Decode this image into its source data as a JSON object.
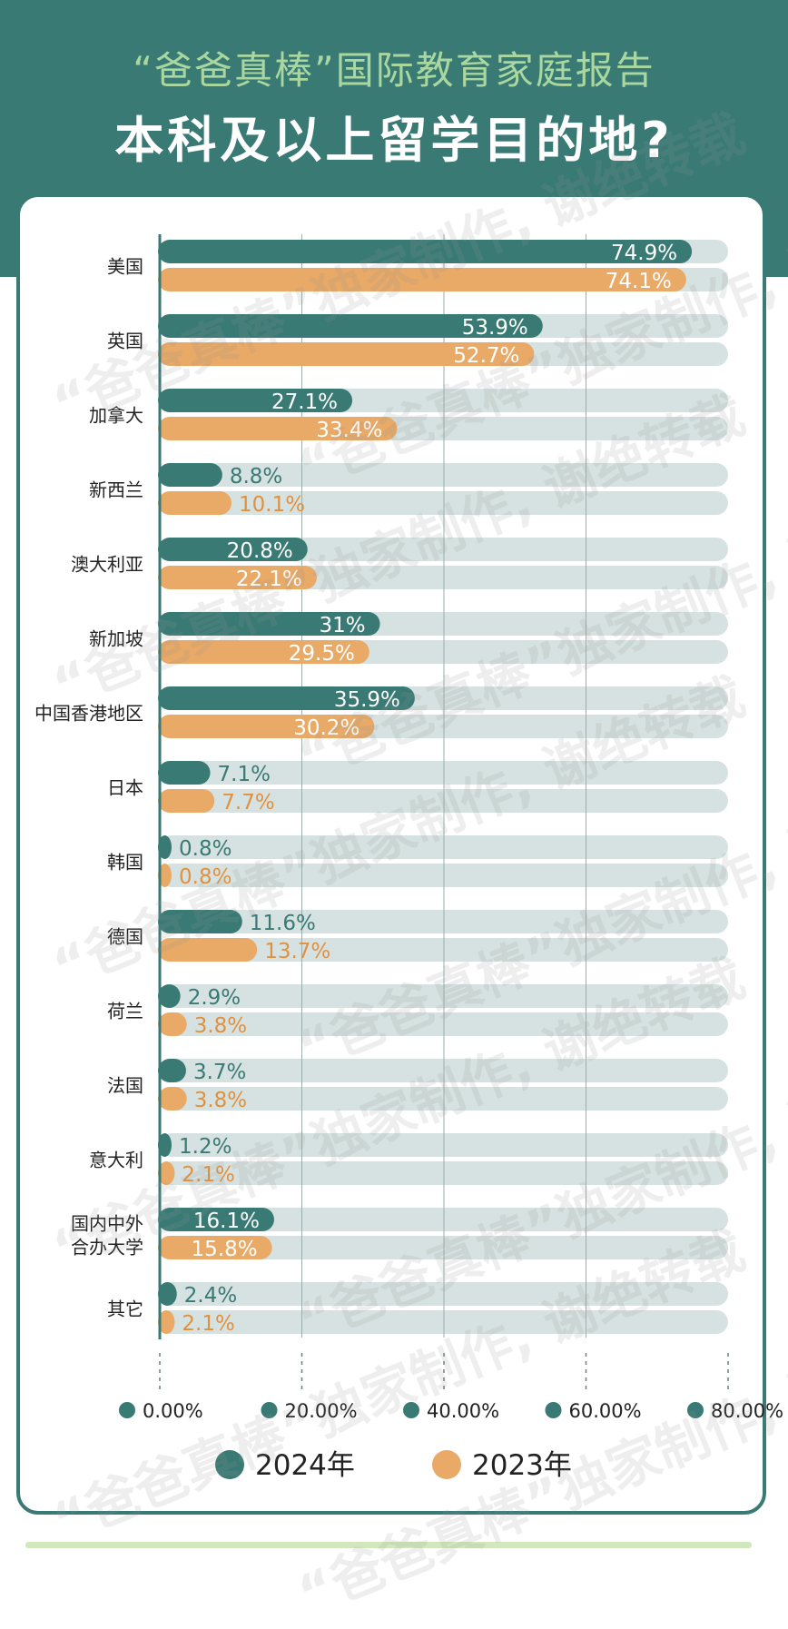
{
  "header": {
    "subtitle": "“爸爸真棒”国际教育家庭报告",
    "title": "本科及以上留学目的地?"
  },
  "watermark_text": "“爸爸真棒”独家制作, 谢绝转载",
  "colors": {
    "header_bg": "#3a7a74",
    "series_2024": "#3a7a74",
    "series_2023": "#e8aa66",
    "track": "#d6e2e1",
    "label_2024": "#3a7a74",
    "label_2023": "#e0913f",
    "footer_line": "#d3e7be"
  },
  "chart_data": {
    "type": "bar",
    "orientation": "horizontal",
    "categories": [
      "美国",
      "英国",
      "加拿大",
      "新西兰",
      "澳大利亚",
      "新加坡",
      "中国香港地区",
      "日本",
      "韩国",
      "德国",
      "荷兰",
      "法国",
      "意大利",
      "国内中外\n合办大学",
      "其它"
    ],
    "series": [
      {
        "name": "2024年",
        "values": [
          74.9,
          53.9,
          27.1,
          8.8,
          20.8,
          31,
          35.9,
          7.1,
          0.8,
          11.6,
          2.9,
          3.7,
          1.2,
          16.1,
          2.4
        ],
        "labels": [
          "74.9%",
          "53.9%",
          "27.1%",
          "8.8%",
          "20.8%",
          "31%",
          "35.9%",
          "7.1%",
          "0.8%",
          "11.6%",
          "2.9%",
          "3.7%",
          "1.2%",
          "16.1%",
          "2.4%"
        ]
      },
      {
        "name": "2023年",
        "values": [
          74.1,
          52.7,
          33.4,
          10.1,
          22.1,
          29.5,
          30.2,
          7.7,
          0.8,
          13.7,
          3.8,
          3.8,
          2.1,
          15.8,
          2.1
        ],
        "labels": [
          "74.1%",
          "52.7%",
          "33.4%",
          "10.1%",
          "22.1%",
          "29.5%",
          "30.2%",
          "7.7%",
          "0.8%",
          "13.7%",
          "3.8%",
          "3.8%",
          "2.1%",
          "15.8%",
          "2.1%"
        ]
      }
    ],
    "xlim": [
      0,
      80
    ],
    "ticks": [
      "0.00%",
      "20.00%",
      "40.00%",
      "60.00%",
      "80.00%"
    ],
    "grid": true,
    "legend_position": "bottom"
  }
}
